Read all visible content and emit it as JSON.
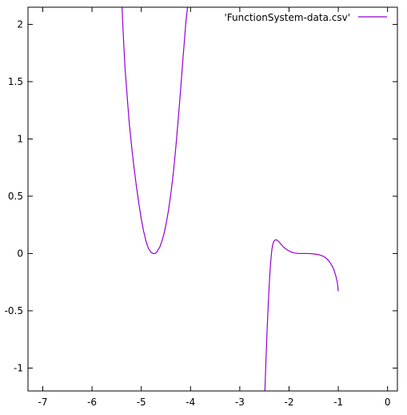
{
  "chart_data": {
    "type": "line",
    "title": "",
    "xlabel": "",
    "ylabel": "",
    "xlim": [
      -7.3,
      0.2
    ],
    "ylim": [
      -1.2,
      2.15
    ],
    "xticks": [
      -7,
      -6,
      -5,
      -4,
      -3,
      -2,
      -1,
      0
    ],
    "yticks": [
      -1,
      -0.5,
      0,
      0.5,
      1,
      1.5,
      2
    ],
    "xtick_labels": [
      "-7",
      "-6",
      "-5",
      "-4",
      "-3",
      "-2",
      "-1",
      "0"
    ],
    "ytick_labels": [
      "-1",
      "-0.5",
      "0",
      "0.5",
      "1",
      "1.5",
      "2"
    ],
    "grid": false,
    "legend_position": "top-right",
    "series": [
      {
        "name": "'FunctionSystem-data.csv'",
        "color": "#9400d3",
        "segments": [
          {
            "x": [
              -5.39,
              -5.37,
              -5.35,
              -5.33,
              -5.3,
              -5.27,
              -5.24,
              -5.2,
              -5.15,
              -5.1,
              -5.05,
              -5.0,
              -4.95,
              -4.9,
              -4.85,
              -4.8,
              -4.76,
              -4.72,
              -4.69,
              -4.66,
              -4.62,
              -4.58,
              -4.54,
              -4.5,
              -4.45,
              -4.4,
              -4.35,
              -4.3,
              -4.26,
              -4.22,
              -4.18,
              -4.15,
              -4.12,
              -4.1,
              -4.08,
              -4.06
            ],
            "y": [
              2.15,
              1.95,
              1.78,
              1.62,
              1.45,
              1.28,
              1.12,
              0.95,
              0.76,
              0.59,
              0.44,
              0.3,
              0.19,
              0.1,
              0.04,
              0.01,
              0.0,
              0.0,
              0.01,
              0.03,
              0.06,
              0.11,
              0.17,
              0.25,
              0.37,
              0.52,
              0.7,
              0.92,
              1.12,
              1.33,
              1.55,
              1.72,
              1.88,
              1.99,
              2.08,
              2.15
            ]
          },
          {
            "x": [
              -2.49,
              -2.47,
              -2.45,
              -2.43,
              -2.41,
              -2.39,
              -2.37,
              -2.35,
              -2.33,
              -2.31,
              -2.29,
              -2.27,
              -2.25,
              -2.23,
              -2.2,
              -2.16,
              -2.12,
              -2.08,
              -2.03,
              -1.97,
              -1.9,
              -1.8,
              -1.7,
              -1.6,
              -1.5,
              -1.4,
              -1.3,
              -1.25,
              -1.2,
              -1.15,
              -1.1,
              -1.06,
              -1.02,
              -1.0
            ],
            "y": [
              -1.2,
              -0.95,
              -0.72,
              -0.52,
              -0.34,
              -0.18,
              -0.06,
              0.03,
              0.08,
              0.105,
              0.115,
              0.12,
              0.118,
              0.112,
              0.1,
              0.08,
              0.06,
              0.045,
              0.03,
              0.015,
              0.005,
              0.0,
              0.0,
              0.0,
              -0.003,
              -0.01,
              -0.025,
              -0.04,
              -0.06,
              -0.09,
              -0.13,
              -0.18,
              -0.25,
              -0.33
            ]
          }
        ]
      }
    ]
  }
}
